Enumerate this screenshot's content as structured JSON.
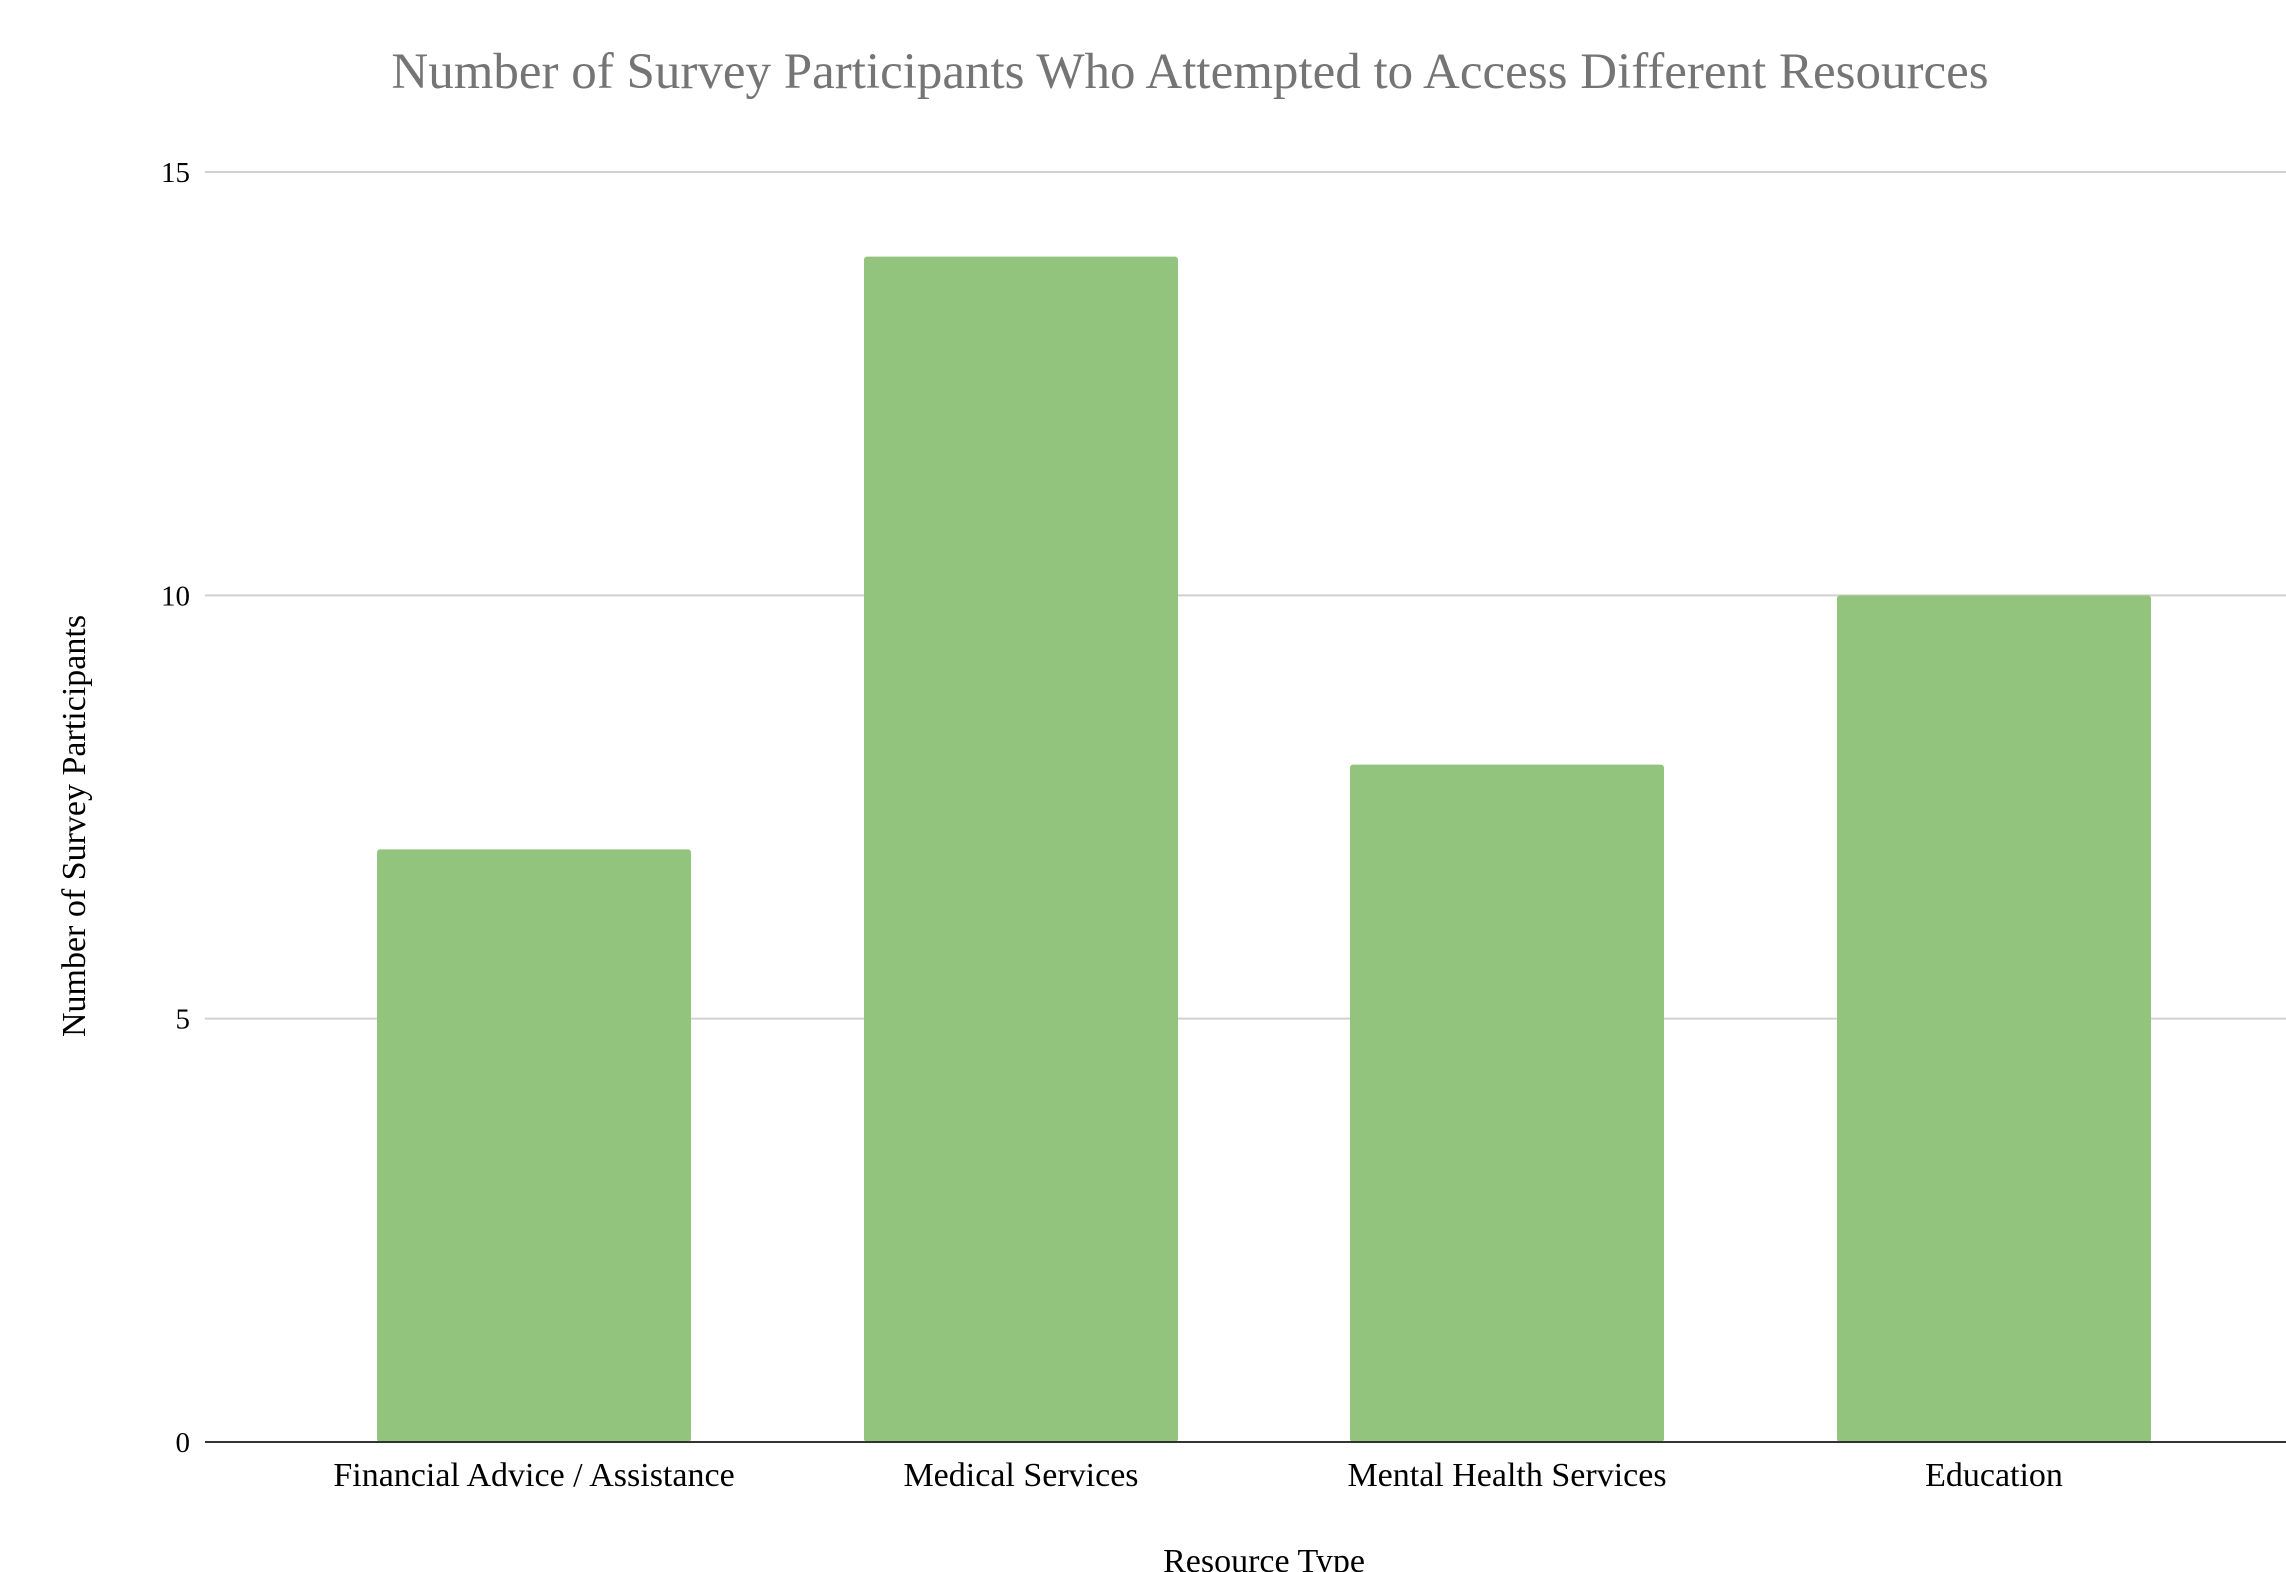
{
  "chart_data": {
    "type": "bar",
    "title": "Number of Survey Participants Who Attempted to Access Different Resources",
    "xlabel": "Resource Type",
    "ylabel": "Number of Survey Participants",
    "categories": [
      "Financial Advice / Assistance",
      "Medical Services",
      "Mental Health Services",
      "Education"
    ],
    "values": [
      7,
      14,
      8,
      10
    ],
    "ylim": [
      0,
      15
    ],
    "yticks": [
      0,
      5,
      10,
      15
    ],
    "grid": true,
    "legend": "none",
    "bar_color": "#93c47d"
  }
}
